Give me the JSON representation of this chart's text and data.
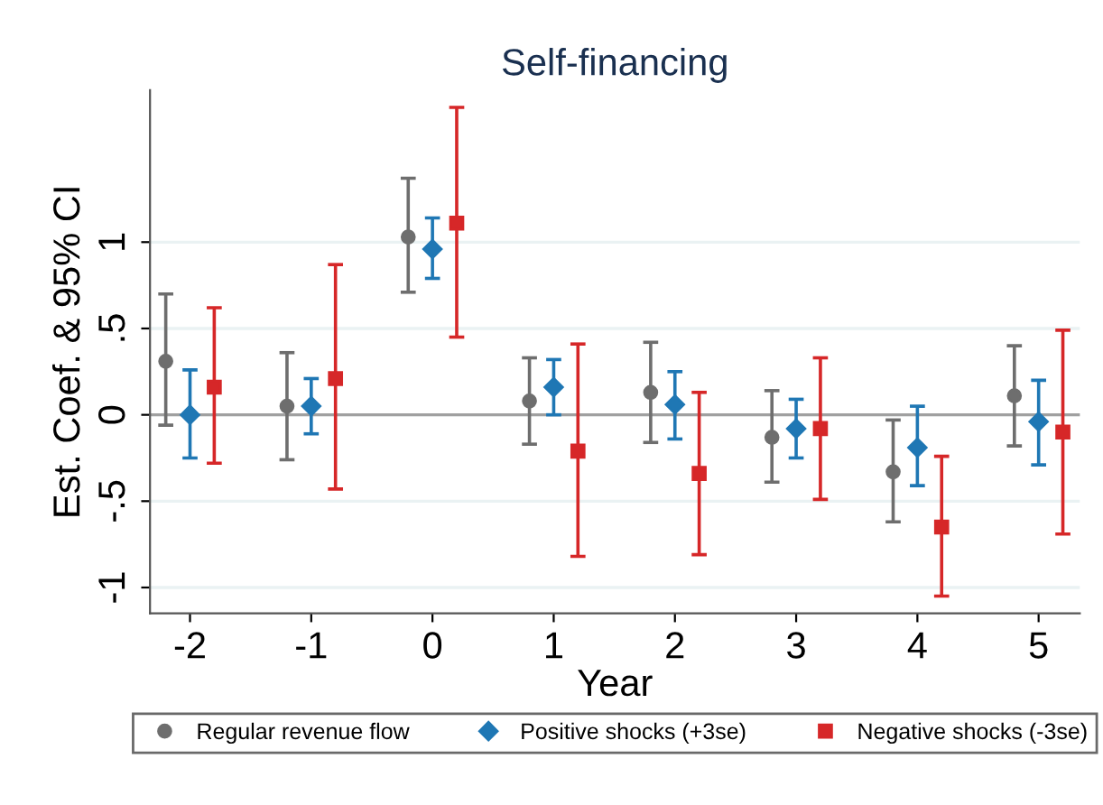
{
  "chart_data": {
    "type": "scatter",
    "title": "Self-financing",
    "xlabel": "Year",
    "ylabel": "Est. Coef. & 95% CI",
    "xlim": [
      -2.33,
      5.34
    ],
    "xticks": [
      -2,
      -1,
      0,
      1,
      2,
      3,
      4,
      5
    ],
    "ylim": [
      -1.15,
      1.88
    ],
    "yticks": [
      {
        "value": -1,
        "label": "-1"
      },
      {
        "value": -0.5,
        "label": "-.5"
      },
      0,
      {
        "value": 0.5,
        "label": ".5"
      },
      1
    ],
    "grid": "y",
    "legend": "bottom",
    "ref_lines": [
      {
        "axis": "y",
        "value": 0,
        "color": "#a0a0a0"
      }
    ],
    "series": [
      {
        "name": "Regular revenue flow",
        "color": "#6e6e6e",
        "marker": "circle",
        "x": [
          -2.2,
          -1.2,
          -0.2,
          0.8,
          1.8,
          2.8,
          3.8,
          4.8
        ],
        "values": [
          0.31,
          0.05,
          1.03,
          0.08,
          0.13,
          -0.13,
          -0.33,
          0.11
        ],
        "errors": [
          [
            -0.06,
            0.7
          ],
          [
            -0.26,
            0.36
          ],
          [
            0.71,
            1.37
          ],
          [
            -0.17,
            0.33
          ],
          [
            -0.16,
            0.42
          ],
          [
            -0.39,
            0.14
          ],
          [
            -0.62,
            -0.03
          ],
          [
            -0.18,
            0.4
          ]
        ]
      },
      {
        "name": "Positive shocks (+3se)",
        "color": "#1f77b4",
        "marker": "diamond",
        "x": [
          -2,
          -1,
          0,
          1,
          2,
          3,
          4,
          5
        ],
        "values": [
          0.0,
          0.05,
          0.96,
          0.16,
          0.06,
          -0.08,
          -0.19,
          -0.04
        ],
        "errors": [
          [
            -0.25,
            0.26
          ],
          [
            -0.11,
            0.21
          ],
          [
            0.79,
            1.14
          ],
          [
            0.0,
            0.32
          ],
          [
            -0.14,
            0.25
          ],
          [
            -0.25,
            0.09
          ],
          [
            -0.41,
            0.05
          ],
          [
            -0.29,
            0.2
          ]
        ]
      },
      {
        "name": "Negative shocks (-3se)",
        "color": "#d62728",
        "marker": "square",
        "x": [
          -1.8,
          -0.8,
          0.2,
          1.2,
          2.2,
          3.2,
          4.2,
          5.2
        ],
        "values": [
          0.16,
          0.21,
          1.11,
          -0.21,
          -0.34,
          -0.08,
          -0.65,
          -0.1
        ],
        "errors": [
          [
            -0.28,
            0.62
          ],
          [
            -0.43,
            0.87
          ],
          [
            0.45,
            1.78
          ],
          [
            -0.82,
            0.41
          ],
          [
            -0.81,
            0.13
          ],
          [
            -0.49,
            0.33
          ],
          [
            -1.05,
            -0.24
          ],
          [
            -0.69,
            0.49
          ]
        ]
      }
    ]
  }
}
